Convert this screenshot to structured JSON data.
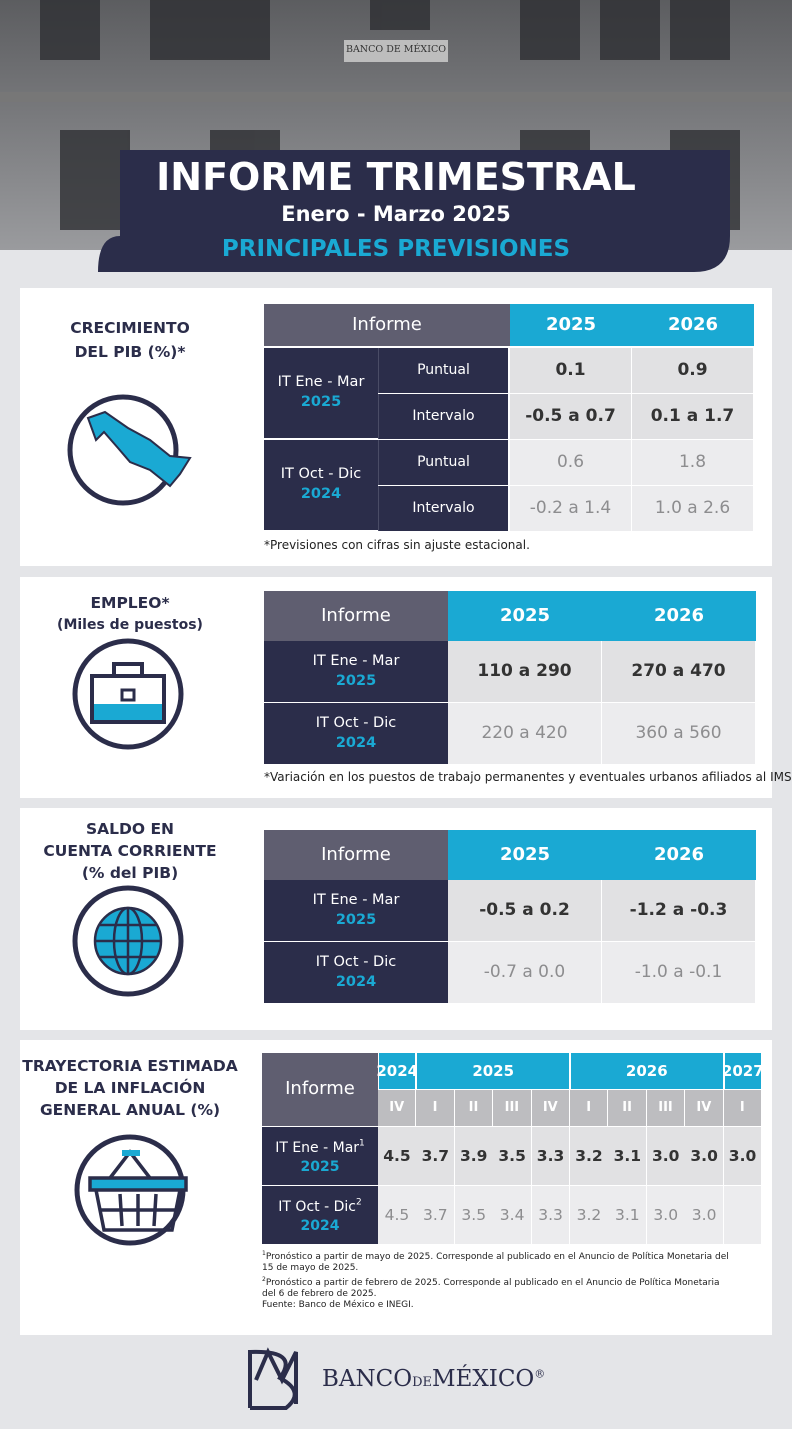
{
  "header": {
    "sign": "BANCO DE MÉXICO",
    "title": "INFORME TRIMESTRAL",
    "subtitle": "Enero - Marzo 2025",
    "heading": "PRINCIPALES PREVISIONES"
  },
  "sections": [
    {
      "label": [
        "CRECIMIENTO",
        "DEL PIB (%)*"
      ],
      "table": {
        "header": [
          "Informe",
          "2025",
          "2026"
        ],
        "groups": [
          {
            "report": "IT Ene - Mar",
            "year": "2025",
            "rows": [
              {
                "kind": "Puntual",
                "values": [
                  "0.1",
                  "0.9"
                ]
              },
              {
                "kind": "Intervalo",
                "values": [
                  "-0.5 a 0.7",
                  "0.1 a 1.7"
                ]
              }
            ]
          },
          {
            "report": "IT Oct - Dic",
            "year": "2024",
            "rows": [
              {
                "kind": "Puntual",
                "values": [
                  "0.6",
                  "1.8"
                ]
              },
              {
                "kind": "Intervalo",
                "values": [
                  "-0.2 a 1.4",
                  "1.0 a 2.6"
                ]
              }
            ]
          }
        ]
      },
      "note": "*Previsiones con cifras sin ajuste estacional."
    },
    {
      "label": [
        "EMPLEO*",
        "(Miles de puestos)"
      ],
      "table": {
        "header": [
          "Informe",
          "2025",
          "2026"
        ],
        "rows": [
          {
            "report": "IT Ene - Mar",
            "year": "2025",
            "values": [
              "110 a 290",
              "270 a 470"
            ]
          },
          {
            "report": "IT Oct - Dic",
            "year": "2024",
            "values": [
              "220 a 420",
              "360 a 560"
            ]
          }
        ]
      },
      "note": "*Variación en los puestos de trabajo permanentes y eventuales urbanos afiliados al IMSS."
    },
    {
      "label": [
        "SALDO EN",
        "CUENTA CORRIENTE",
        "(% del PIB)"
      ],
      "table": {
        "header": [
          "Informe",
          "2025",
          "2026"
        ],
        "rows": [
          {
            "report": "IT Ene - Mar",
            "year": "2025",
            "values": [
              "-0.5 a 0.2",
              "-1.2 a -0.3"
            ]
          },
          {
            "report": "IT Oct - Dic",
            "year": "2024",
            "values": [
              "-0.7 a 0.0",
              "-1.0 a -0.1"
            ]
          }
        ]
      }
    },
    {
      "label": [
        "TRAYECTORIA ESTIMADA",
        "DE LA INFLACIÓN",
        "GENERAL ANUAL (%)"
      ],
      "table": {
        "header": "Informe",
        "years": [
          {
            "year": "2024",
            "quarters": [
              "IV"
            ]
          },
          {
            "year": "2025",
            "quarters": [
              "I",
              "II",
              "III",
              "IV"
            ]
          },
          {
            "year": "2026",
            "quarters": [
              "I",
              "II",
              "III",
              "IV"
            ]
          },
          {
            "year": "2027",
            "quarters": [
              "I"
            ]
          }
        ],
        "rows": [
          {
            "report": "IT Ene - Mar",
            "sup": "1",
            "year": "2025",
            "values": [
              "4.5",
              "3.7",
              "3.9",
              "3.5",
              "3.3",
              "3.2",
              "3.1",
              "3.0",
              "3.0",
              "3.0"
            ]
          },
          {
            "report": "IT Oct - Dic",
            "sup": "2",
            "year": "2024",
            "values": [
              "4.5",
              "3.7",
              "3.5",
              "3.4",
              "3.3",
              "3.2",
              "3.1",
              "3.0",
              "3.0",
              null
            ]
          }
        ]
      },
      "notes": [
        {
          "mark": "1",
          "text": "Pronóstico a partir de mayo de 2025. Corresponde al publicado en el Anuncio de Política Monetaria del 15 de mayo de 2025."
        },
        {
          "mark": "2",
          "text": "Pronóstico a partir de febrero de 2025. Corresponde al publicado en el Anuncio de Política Monetaria del 6 de febrero de 2025."
        }
      ],
      "source": "Fuente: Banco de México e INEGI."
    }
  ],
  "footer": {
    "brand": [
      "BANCO",
      "DE",
      "MÉXICO"
    ],
    "mark": "®"
  }
}
